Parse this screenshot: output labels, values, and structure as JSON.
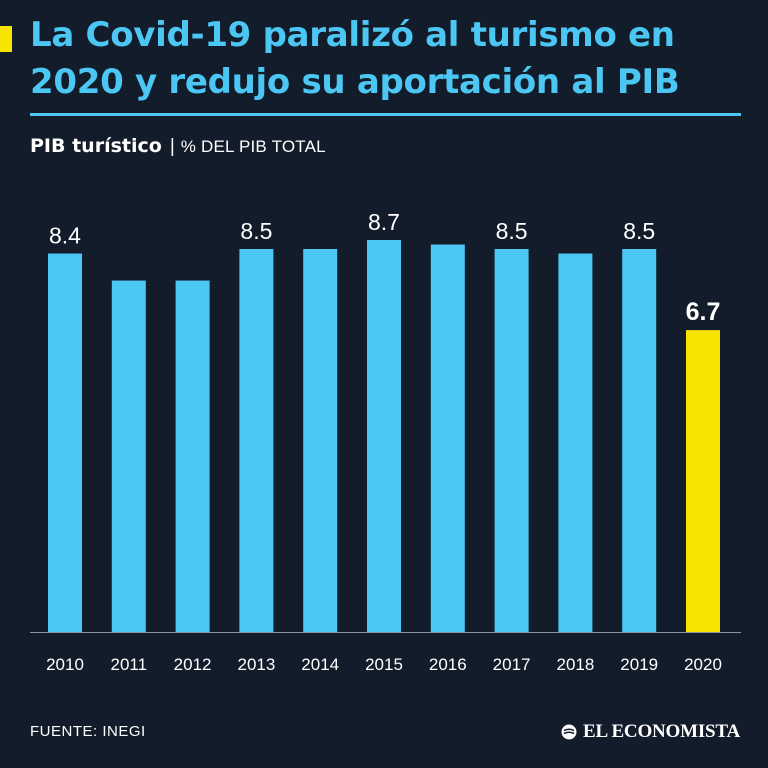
{
  "title": "La Covid-19 paralizó al turismo en 2020 y redujo su aportación al PIB",
  "subtitle": {
    "label": "PIB turístico",
    "separator": "|",
    "unit": "% DEL PIB TOTAL"
  },
  "source": "FUENTE: INEGI",
  "brand": "EL ECONOMISTA",
  "colors": {
    "background": "#131c2a",
    "accent_blue": "#4cc7f4",
    "highlight_yellow": "#f7e400",
    "text": "#ffffff"
  },
  "chart_data": {
    "type": "bar",
    "categories": [
      "2010",
      "2011",
      "2012",
      "2013",
      "2014",
      "2015",
      "2016",
      "2017",
      "2018",
      "2019",
      "2020"
    ],
    "values": [
      8.4,
      7.8,
      7.8,
      8.5,
      8.5,
      8.7,
      8.6,
      8.5,
      8.4,
      8.5,
      6.7
    ],
    "data_labels": [
      "8.4",
      "",
      "",
      "8.5",
      "",
      "8.7",
      "",
      "8.5",
      "",
      "8.5",
      "6.7"
    ],
    "highlight": "2020",
    "ylim": [
      0,
      8.7
    ],
    "grid": false,
    "legend": "none"
  }
}
